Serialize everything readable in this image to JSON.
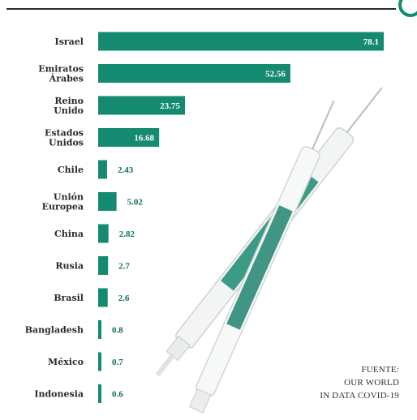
{
  "chart_data": {
    "type": "bar",
    "orientation": "horizontal",
    "categories": [
      "Israel",
      "Emiratos\nÁrabes",
      "Reino\nUnido",
      "Estados\nUnidos",
      "Chile",
      "Unión\nEuropea",
      "China",
      "Rusia",
      "Brasil",
      "Bangladesh",
      "México",
      "Indonesia"
    ],
    "values": [
      78.1,
      52.56,
      23.75,
      16.68,
      2.43,
      5.02,
      2.82,
      2.7,
      2.6,
      0.8,
      0.7,
      0.6
    ],
    "value_labels": [
      "78.1",
      "52.56",
      "23.75",
      "16.68",
      "2.43",
      "5.02",
      "2.82",
      "2.7",
      "2.6",
      "0.8",
      "0.7",
      "0.6"
    ],
    "bar_color": "#148a70",
    "inside_label_color": "#ffffff",
    "outside_label_color": "#0f6e58",
    "grid": false,
    "legend": "none"
  },
  "source": {
    "line1": "FUENTE:",
    "line2": "OUR WORLD",
    "line3": "IN DATA COVID-19"
  },
  "colors": {
    "accent": "#148a70",
    "header_rule": "#2a2a2a"
  }
}
